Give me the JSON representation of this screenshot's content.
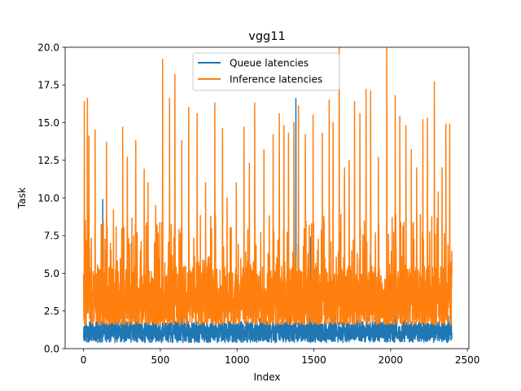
{
  "chart_data": {
    "type": "line",
    "title": "vgg11",
    "xlabel": "Index",
    "ylabel": "Task",
    "xlim": [
      -120,
      2510
    ],
    "ylim": [
      0.0,
      20.0
    ],
    "xticks": [
      {
        "value": 0,
        "label": "0"
      },
      {
        "value": 500,
        "label": "500"
      },
      {
        "value": 1000,
        "label": "1000"
      },
      {
        "value": 1500,
        "label": "1500"
      },
      {
        "value": 2000,
        "label": "2000"
      },
      {
        "value": 2500,
        "label": "2500"
      }
    ],
    "yticks": [
      {
        "value": 0.0,
        "label": "0.0"
      },
      {
        "value": 2.5,
        "label": "2.5"
      },
      {
        "value": 5.0,
        "label": "5.0"
      },
      {
        "value": 7.5,
        "label": "7.5"
      },
      {
        "value": 10.0,
        "label": "10.0"
      },
      {
        "value": 12.5,
        "label": "12.5"
      },
      {
        "value": 15.0,
        "label": "15.0"
      },
      {
        "value": 17.5,
        "label": "17.5"
      },
      {
        "value": 20.0,
        "label": "20.0"
      }
    ],
    "grid": false,
    "legend": "upper center",
    "series": [
      {
        "name": "Queue latencies",
        "color": "#1f77b4",
        "n_points": 2400,
        "baseline_range": [
          0.4,
          1.8
        ],
        "spikes": [
          {
            "x": 125,
            "y": 9.9
          },
          {
            "x": 312,
            "y": 7.0
          },
          {
            "x": 1383,
            "y": 16.6
          },
          {
            "x": 1480,
            "y": 7.4
          }
        ]
      },
      {
        "name": "Inference latencies",
        "color": "#ff7f0e",
        "n_points": 2400,
        "baseline_range": [
          1.6,
          5.5
        ],
        "spikes": [
          {
            "x": 5,
            "y": 16.4
          },
          {
            "x": 25,
            "y": 16.6
          },
          {
            "x": 35,
            "y": 14.1
          },
          {
            "x": 75,
            "y": 14.5
          },
          {
            "x": 150,
            "y": 13.7
          },
          {
            "x": 195,
            "y": 9.2
          },
          {
            "x": 255,
            "y": 14.7
          },
          {
            "x": 285,
            "y": 12.7
          },
          {
            "x": 340,
            "y": 13.8
          },
          {
            "x": 395,
            "y": 11.9
          },
          {
            "x": 420,
            "y": 11.0
          },
          {
            "x": 470,
            "y": 9.5
          },
          {
            "x": 515,
            "y": 19.2
          },
          {
            "x": 560,
            "y": 16.6
          },
          {
            "x": 595,
            "y": 18.2
          },
          {
            "x": 640,
            "y": 13.8
          },
          {
            "x": 685,
            "y": 16.0
          },
          {
            "x": 740,
            "y": 15.6
          },
          {
            "x": 795,
            "y": 11.0
          },
          {
            "x": 855,
            "y": 16.3
          },
          {
            "x": 905,
            "y": 14.6
          },
          {
            "x": 935,
            "y": 10.0
          },
          {
            "x": 995,
            "y": 11.0
          },
          {
            "x": 1045,
            "y": 14.7
          },
          {
            "x": 1080,
            "y": 12.3
          },
          {
            "x": 1115,
            "y": 16.3
          },
          {
            "x": 1175,
            "y": 13.2
          },
          {
            "x": 1235,
            "y": 14.2
          },
          {
            "x": 1275,
            "y": 15.6
          },
          {
            "x": 1305,
            "y": 14.8
          },
          {
            "x": 1335,
            "y": 14.3
          },
          {
            "x": 1370,
            "y": 15.0
          },
          {
            "x": 1400,
            "y": 16.1
          },
          {
            "x": 1445,
            "y": 14.2
          },
          {
            "x": 1495,
            "y": 15.5
          },
          {
            "x": 1555,
            "y": 14.3
          },
          {
            "x": 1600,
            "y": 16.5
          },
          {
            "x": 1625,
            "y": 15.0
          },
          {
            "x": 1665,
            "y": 20.0
          },
          {
            "x": 1700,
            "y": 12.0
          },
          {
            "x": 1730,
            "y": 12.5
          },
          {
            "x": 1765,
            "y": 16.4
          },
          {
            "x": 1800,
            "y": 15.6
          },
          {
            "x": 1840,
            "y": 17.2
          },
          {
            "x": 1870,
            "y": 17.1
          },
          {
            "x": 1920,
            "y": 12.7
          },
          {
            "x": 1975,
            "y": 20.0
          },
          {
            "x": 2030,
            "y": 16.8
          },
          {
            "x": 2060,
            "y": 15.4
          },
          {
            "x": 2100,
            "y": 14.8
          },
          {
            "x": 2135,
            "y": 13.2
          },
          {
            "x": 2170,
            "y": 12.0
          },
          {
            "x": 2210,
            "y": 15.2
          },
          {
            "x": 2240,
            "y": 15.3
          },
          {
            "x": 2285,
            "y": 17.7
          },
          {
            "x": 2310,
            "y": 10.4
          },
          {
            "x": 2335,
            "y": 12.0
          },
          {
            "x": 2360,
            "y": 14.9
          },
          {
            "x": 2385,
            "y": 14.9
          }
        ]
      }
    ]
  }
}
